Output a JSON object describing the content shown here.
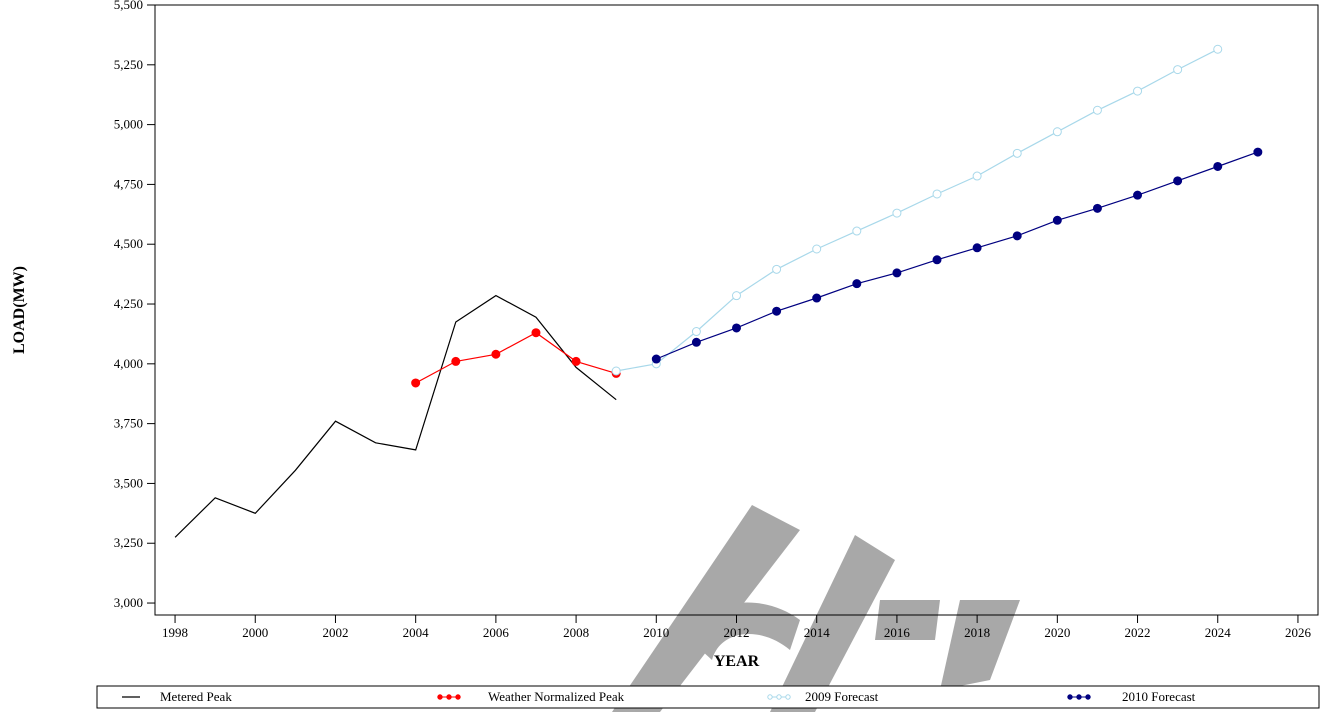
{
  "chart_data": {
    "type": "line",
    "xlabel": "YEAR",
    "ylabel": "LOAD(MW)",
    "xlim": [
      1997.5,
      2026.5
    ],
    "ylim": [
      2950,
      5500
    ],
    "x_ticks": [
      "1998",
      "2000",
      "2002",
      "2004",
      "2006",
      "2008",
      "2010",
      "2012",
      "2014",
      "2016",
      "2018",
      "2020",
      "2022",
      "2024",
      "2026"
    ],
    "y_ticks": [
      "3,000",
      "3,250",
      "3,500",
      "3,750",
      "4,000",
      "4,250",
      "4,500",
      "4,750",
      "5,000",
      "5,250",
      "5,500"
    ],
    "grid": false,
    "legend_position": "bottom",
    "series": [
      {
        "name": "Metered Peak",
        "color": "#000000",
        "marker": "none",
        "x": [
          1998,
          1999,
          2000,
          2001,
          2002,
          2003,
          2004,
          2005,
          2006,
          2007,
          2008,
          2009
        ],
        "y": [
          3275,
          3440,
          3375,
          3555,
          3760,
          3670,
          3640,
          4175,
          4285,
          4195,
          3985,
          3850
        ]
      },
      {
        "name": "Weather Normalized Peak",
        "color": "#ff0000",
        "marker": "filled",
        "x": [
          2004,
          2005,
          2006,
          2007,
          2008,
          2009
        ],
        "y": [
          3920,
          4010,
          4040,
          4130,
          4010,
          3960
        ]
      },
      {
        "name": "2009 Forecast",
        "color": "#a8d8ea",
        "marker": "open",
        "x": [
          2009,
          2010,
          2011,
          2012,
          2013,
          2014,
          2015,
          2016,
          2017,
          2018,
          2019,
          2020,
          2021,
          2022,
          2023,
          2024
        ],
        "y": [
          3970,
          4000,
          4135,
          4285,
          4395,
          4480,
          4555,
          4630,
          4710,
          4785,
          4880,
          4970,
          5060,
          5140,
          5230,
          5315
        ]
      },
      {
        "name": "2010 Forecast",
        "color": "#000080",
        "marker": "filled",
        "x": [
          2010,
          2011,
          2012,
          2013,
          2014,
          2015,
          2016,
          2017,
          2018,
          2019,
          2020,
          2021,
          2022,
          2023,
          2024,
          2025
        ],
        "y": [
          4020,
          4090,
          4150,
          4220,
          4275,
          4335,
          4380,
          4435,
          4485,
          4535,
          4600,
          4650,
          4705,
          4765,
          4825,
          4885
        ]
      }
    ]
  },
  "watermark": "Draft"
}
